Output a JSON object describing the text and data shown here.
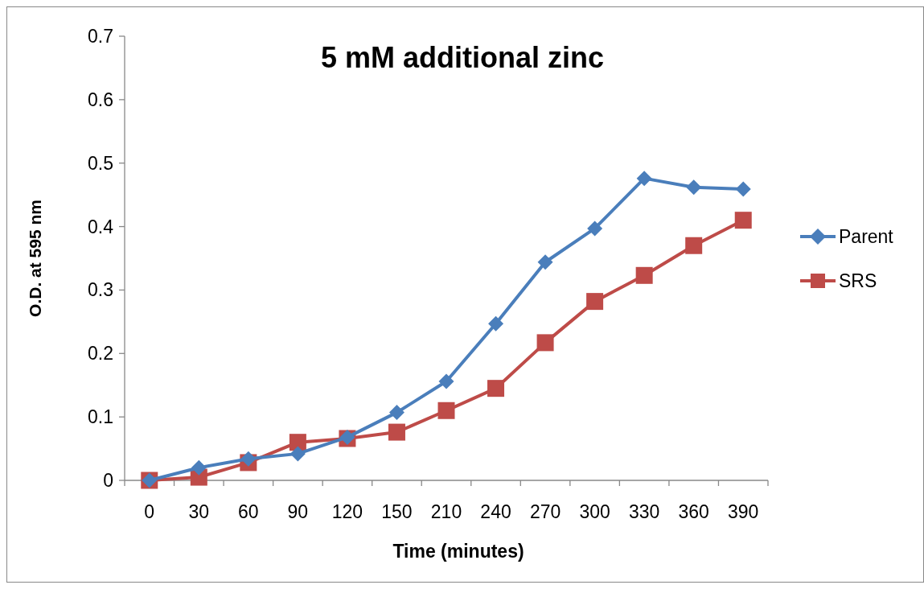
{
  "chart_data": {
    "type": "line",
    "title": "5 mM additional zinc",
    "xlabel": "Time (minutes)",
    "ylabel": "O.D. at 595 nm",
    "categories": [
      "0",
      "30",
      "60",
      "90",
      "120",
      "150",
      "210",
      "240",
      "270",
      "300",
      "330",
      "360",
      "390"
    ],
    "series": [
      {
        "name": "Parent",
        "color": "#4a7ebb",
        "marker": "diamond",
        "values": [
          0,
          0.02,
          0.034,
          0.042,
          0.068,
          0.107,
          0.156,
          0.247,
          0.344,
          0.397,
          0.476,
          0.462,
          0.459
        ]
      },
      {
        "name": "SRS",
        "color": "#be4b48",
        "marker": "square",
        "values": [
          0,
          0.005,
          0.028,
          0.06,
          0.066,
          0.076,
          0.11,
          0.145,
          0.217,
          0.282,
          0.323,
          0.37,
          0.41
        ]
      }
    ],
    "ylim": [
      0,
      0.7
    ],
    "yticks": [
      0,
      0.1,
      0.2,
      0.3,
      0.4,
      0.5,
      0.6,
      0.7
    ],
    "grid": false,
    "legend": "right",
    "line_style": "solid"
  }
}
